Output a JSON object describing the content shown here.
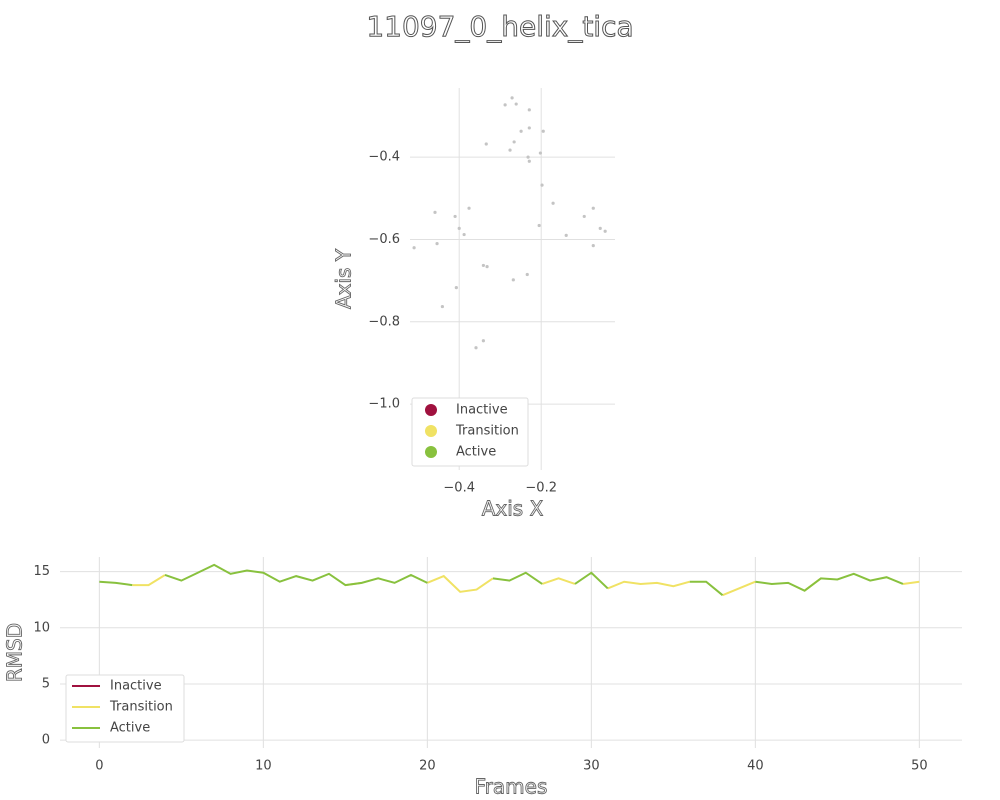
{
  "title": "11097_0_helix_tica",
  "chart_data": [
    {
      "type": "scatter",
      "xlabel": "Axis X",
      "ylabel": "Axis Y",
      "xlim": [
        -0.52,
        -0.02
      ],
      "ylim": [
        -1.16,
        -0.232
      ],
      "xticks": [
        {
          "value": -0.4,
          "label": "−0.4"
        },
        {
          "value": -0.2,
          "label": "−0.2"
        }
      ],
      "yticks": [
        {
          "value": -0.4,
          "label": "−0.4"
        },
        {
          "value": -0.6,
          "label": "−0.6"
        },
        {
          "value": -0.8,
          "label": "−0.8"
        },
        {
          "value": -1.0,
          "label": "−1.0"
        }
      ],
      "grid": true,
      "legend_loc": "lower left",
      "point_color": "#c4c4c4",
      "legend": [
        {
          "name": "Inactive",
          "color": "#a0113f"
        },
        {
          "name": "Transition",
          "color": "#f0e264"
        },
        {
          "name": "Active",
          "color": "#88c13e"
        }
      ],
      "x": [
        -0.271,
        -0.288,
        -0.261,
        -0.229,
        -0.229,
        -0.249,
        -0.195,
        -0.334,
        -0.266,
        -0.276,
        -0.232,
        -0.202,
        -0.229,
        -0.198,
        -0.171,
        -0.376,
        -0.41,
        -0.459,
        -0.073,
        -0.095,
        -0.205,
        -0.4,
        -0.388,
        -0.056,
        -0.044,
        -0.139,
        -0.073,
        -0.454,
        -0.51,
        -0.341,
        -0.332,
        -0.234,
        -0.268,
        -0.407,
        -0.441,
        -0.341,
        -0.359
      ],
      "y": [
        -0.256,
        -0.273,
        -0.271,
        -0.285,
        -0.329,
        -0.337,
        -0.337,
        -0.368,
        -0.363,
        -0.383,
        -0.4,
        -0.39,
        -0.41,
        -0.468,
        -0.512,
        -0.524,
        -0.544,
        -0.534,
        -0.524,
        -0.544,
        -0.566,
        -0.573,
        -0.588,
        -0.573,
        -0.58,
        -0.59,
        -0.615,
        -0.61,
        -0.62,
        -0.663,
        -0.666,
        -0.685,
        -0.698,
        -0.717,
        -0.763,
        -0.846,
        -0.863
      ]
    },
    {
      "type": "line",
      "xlabel": "Frames",
      "ylabel": "RMSD",
      "xlim": [
        -2.4,
        52.6
      ],
      "ylim": [
        -0.7,
        16.3
      ],
      "xticks": [
        0,
        10,
        20,
        30,
        40,
        50
      ],
      "yticks": [
        0,
        5,
        10,
        15
      ],
      "grid": true,
      "legend_loc": "lower left",
      "x": [
        0,
        1,
        2,
        3,
        4,
        5,
        6,
        7,
        8,
        9,
        10,
        11,
        12,
        13,
        14,
        15,
        16,
        17,
        18,
        19,
        20,
        21,
        22,
        23,
        24,
        25,
        26,
        27,
        28,
        29,
        30,
        31,
        32,
        33,
        34,
        35,
        36,
        37,
        38,
        39,
        40,
        41,
        42,
        43,
        44,
        45,
        46,
        47,
        48,
        49,
        50
      ],
      "series": [
        {
          "name": "Inactive",
          "color": "#a0113f",
          "values": [
            null,
            null,
            null,
            null,
            null,
            null,
            null,
            null,
            null,
            null,
            null,
            null,
            null,
            null,
            null,
            null,
            null,
            null,
            null,
            null,
            null,
            null,
            null,
            null,
            null,
            null,
            null,
            null,
            null,
            null,
            null,
            null,
            null,
            null,
            null,
            null,
            null,
            null,
            null,
            null,
            null,
            null,
            null,
            null,
            null,
            null,
            null,
            null,
            null,
            null,
            null
          ]
        },
        {
          "name": "Transition",
          "color": "#f0e264",
          "values": [
            null,
            null,
            13.8,
            13.8,
            14.7,
            null,
            null,
            null,
            null,
            null,
            null,
            null,
            null,
            null,
            null,
            13.8,
            14.0,
            null,
            null,
            null,
            14.0,
            14.6,
            13.2,
            13.4,
            14.4,
            null,
            null,
            13.9,
            14.4,
            13.9,
            null,
            13.5,
            14.1,
            13.9,
            14.0,
            13.7,
            14.1,
            null,
            12.9,
            13.5,
            14.1,
            null,
            null,
            13.3,
            14.4,
            null,
            null,
            null,
            null,
            13.9,
            14.1
          ]
        },
        {
          "name": "Active",
          "color": "#88c13e",
          "values": [
            14.1,
            14.0,
            13.8,
            null,
            14.7,
            14.2,
            14.9,
            15.6,
            14.8,
            15.1,
            14.9,
            14.1,
            14.6,
            14.2,
            14.8,
            13.8,
            14.0,
            14.4,
            14.0,
            14.7,
            14.0,
            null,
            null,
            null,
            14.4,
            14.2,
            14.9,
            13.9,
            null,
            13.9,
            14.9,
            13.5,
            null,
            null,
            null,
            null,
            14.1,
            14.1,
            12.9,
            null,
            14.1,
            13.9,
            14.0,
            13.3,
            14.4,
            14.3,
            14.8,
            14.2,
            14.5,
            13.9,
            null
          ]
        }
      ]
    }
  ]
}
